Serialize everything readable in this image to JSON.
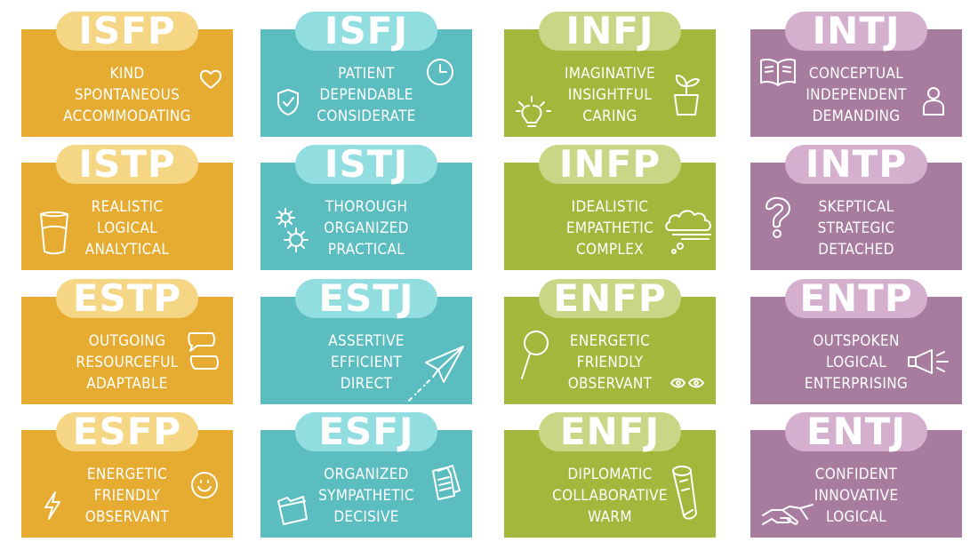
{
  "colors": {
    "yellow": "#e6ac32",
    "teal": "#5cbdc0",
    "green": "#a3b73c",
    "purple": "#a77c9e"
  },
  "cards": [
    {
      "type": "ISFP",
      "traits": [
        "KIND",
        "SPONTANEOUS",
        "ACCOMMODATING"
      ],
      "icon": "heart-icon"
    },
    {
      "type": "ISFJ",
      "traits": [
        "PATIENT",
        "DEPENDABLE",
        "CONSIDERATE"
      ],
      "icon": "shield-clock-icon"
    },
    {
      "type": "INFJ",
      "traits": [
        "IMAGINATIVE",
        "INSIGHTFUL",
        "CARING"
      ],
      "icon": "lightbulb-plant-icon"
    },
    {
      "type": "INTJ",
      "traits": [
        "CONCEPTUAL",
        "INDEPENDENT",
        "DEMANDING"
      ],
      "icon": "book-person-icon"
    },
    {
      "type": "ISTP",
      "traits": [
        "REALISTIC",
        "LOGICAL",
        "ANALYTICAL"
      ],
      "icon": "glass-icon"
    },
    {
      "type": "ISTJ",
      "traits": [
        "THOROUGH",
        "ORGANIZED",
        "PRACTICAL"
      ],
      "icon": "gears-icon"
    },
    {
      "type": "INFP",
      "traits": [
        "IDEALISTIC",
        "EMPATHETIC",
        "COMPLEX"
      ],
      "icon": "cloud-icon"
    },
    {
      "type": "INTP",
      "traits": [
        "SKEPTICAL",
        "STRATEGIC",
        "DETACHED"
      ],
      "icon": "question-mark-icon"
    },
    {
      "type": "ESTP",
      "traits": [
        "OUTGOING",
        "RESOURCEFUL",
        "ADAPTABLE"
      ],
      "icon": "speech-bubbles-icon"
    },
    {
      "type": "ESTJ",
      "traits": [
        "ASSERTIVE",
        "EFFICIENT",
        "DIRECT"
      ],
      "icon": "paper-plane-icon"
    },
    {
      "type": "ENFP",
      "traits": [
        "ENERGETIC",
        "FRIENDLY",
        "OBSERVANT"
      ],
      "icon": "magnifier-eyes-icon"
    },
    {
      "type": "ENTP",
      "traits": [
        "OUTSPOKEN",
        "LOGICAL",
        "ENTERPRISING"
      ],
      "icon": "megaphone-icon"
    },
    {
      "type": "ESFP",
      "traits": [
        "ENERGETIC",
        "FRIENDLY",
        "OBSERVANT"
      ],
      "icon": "lightning-smile-icon"
    },
    {
      "type": "ESFJ",
      "traits": [
        "ORGANIZED",
        "SYMPATHETIC",
        "DECISIVE"
      ],
      "icon": "folder-documents-icon"
    },
    {
      "type": "ENFJ",
      "traits": [
        "DIPLOMATIC",
        "COLLABORATIVE",
        "WARM"
      ],
      "icon": "rolled-scroll-icon"
    },
    {
      "type": "ENTJ",
      "traits": [
        "CONFIDENT",
        "INNOVATIVE",
        "LOGICAL"
      ],
      "icon": "handshake-icon"
    }
  ]
}
